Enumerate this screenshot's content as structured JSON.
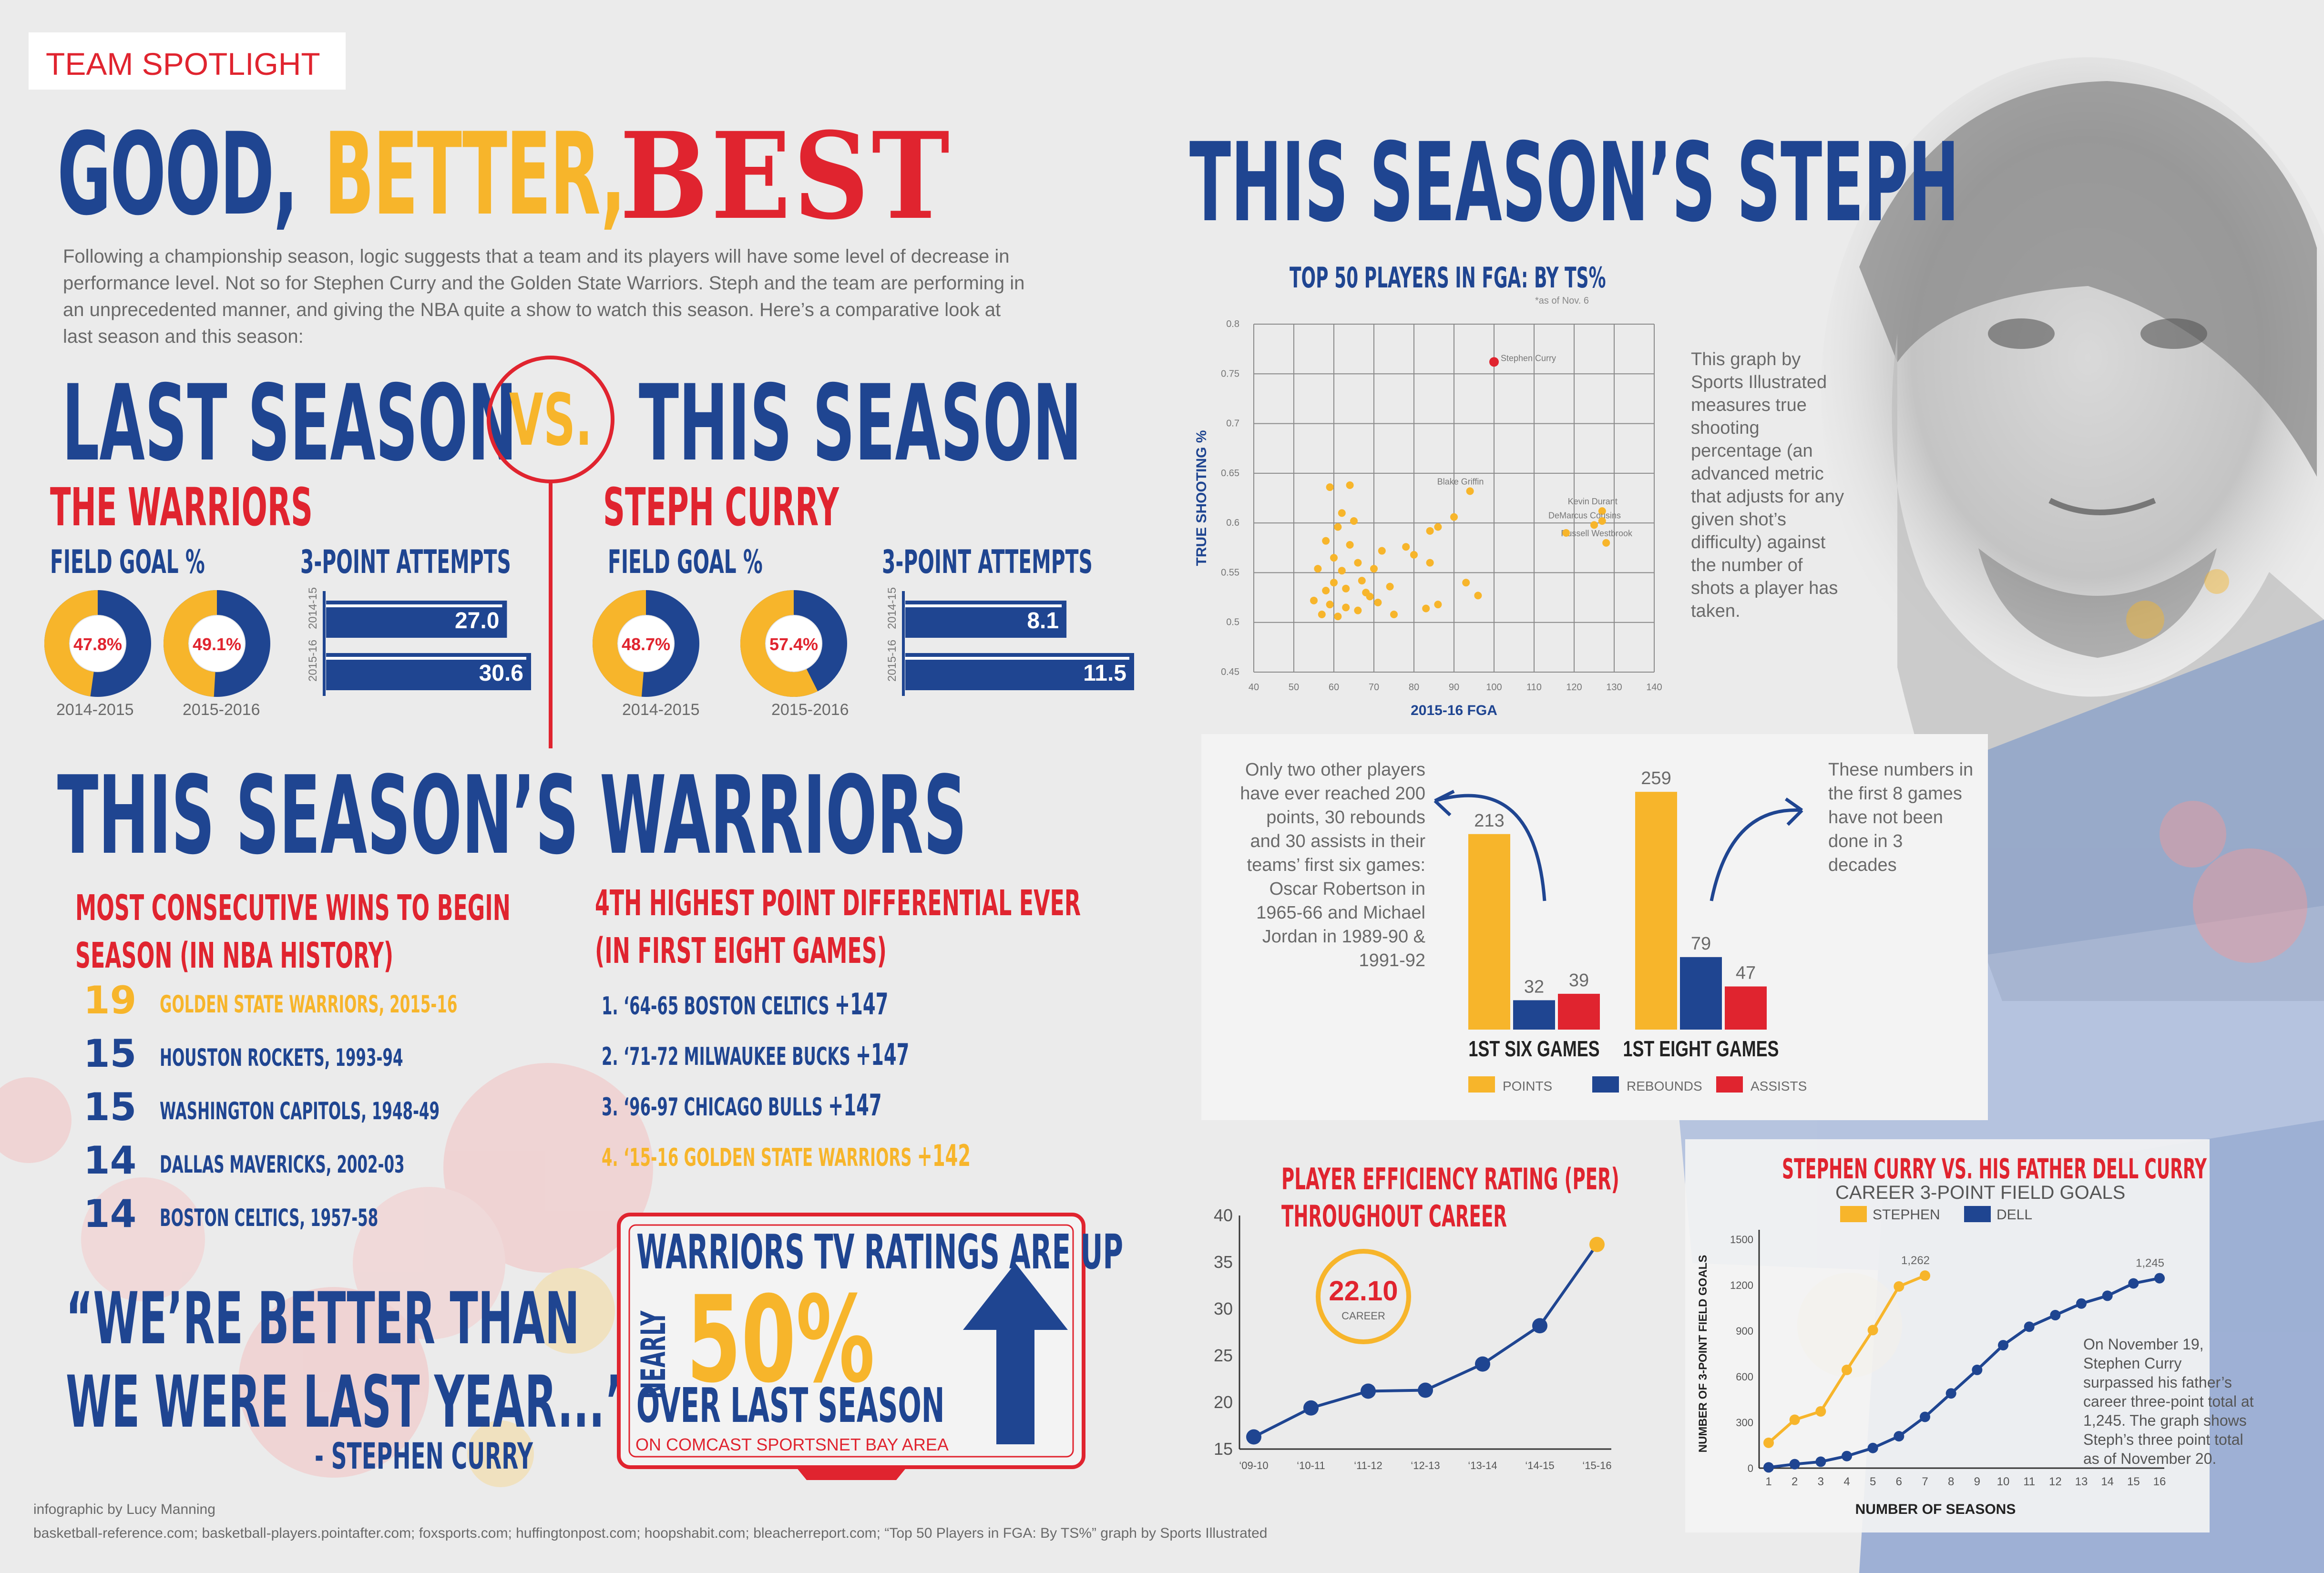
{
  "colors": {
    "blue": "#1f4591",
    "gold": "#f7b52b",
    "red": "#e0242f",
    "gray": "#707070"
  },
  "header": {
    "spotlight": "TEAM SPOTLIGHT",
    "good": "GOOD,",
    "better": "BETTER,",
    "best": "BEST"
  },
  "intro": [
    "Following a championship season, logic suggests that a team and its players will have some level of decrease in",
    "performance level. Not so for Stephen Curry and the Golden State Warriors. Steph and the team are performing in",
    "an unprecedented manner, and giving the NBA quite a show to watch this season. Here’s a comparative look at",
    "last season and this season:"
  ],
  "versus": {
    "last": "LAST SEASON",
    "vs": "VS.",
    "this": "THIS SEASON"
  },
  "warriors": {
    "heading": "THE WARRIORS",
    "fg_label": "FIELD GOAL %",
    "three_label": "3-POINT ATTEMPTS",
    "fg": [
      {
        "value": "47.8%",
        "pct": 47.8,
        "season": "2014-2015"
      },
      {
        "value": "49.1%",
        "pct": 49.1,
        "season": "2015-2016"
      }
    ],
    "three": [
      {
        "season": "2014-15",
        "value": "27.0",
        "num": 27.0
      },
      {
        "season": "2015-16",
        "value": "30.6",
        "num": 30.6
      }
    ]
  },
  "curry": {
    "heading": "STEPH CURRY",
    "fg_label": "FIELD GOAL %",
    "three_label": "3-POINT ATTEMPTS",
    "fg": [
      {
        "value": "48.7%",
        "pct": 48.7,
        "season": "2014-2015"
      },
      {
        "value": "57.4%",
        "pct": 57.4,
        "season": "2015-2016"
      }
    ],
    "three": [
      {
        "season": "2014-15",
        "value": "8.1",
        "num": 8.1
      },
      {
        "season": "2015-16",
        "value": "11.5",
        "num": 11.5
      }
    ]
  },
  "this_warriors": {
    "title": "THIS SEASON’S WARRIORS",
    "wins_title": [
      "MOST CONSECUTIVE WINS TO BEGIN",
      "SEASON (IN NBA HISTORY)"
    ],
    "wins": [
      {
        "num": "19",
        "team": "GOLDEN STATE WARRIORS, 2015-16",
        "highlight": true
      },
      {
        "num": "15",
        "team": "HOUSTON ROCKETS, 1993-94",
        "highlight": false
      },
      {
        "num": "15",
        "team": "WASHINGTON CAPITOLS, 1948-49",
        "highlight": false
      },
      {
        "num": "14",
        "team": "DALLAS MAVERICKS, 2002-03",
        "highlight": false
      },
      {
        "num": "14",
        "team": "BOSTON CELTICS, 1957-58",
        "highlight": false
      }
    ],
    "diff_title": [
      "4TH HIGHEST POINT DIFFERENTIAL EVER",
      "(IN FIRST EIGHT GAMES)"
    ],
    "diffs": [
      {
        "label": "1. ‘64-65 BOSTON CELTICS",
        "value": "+147",
        "highlight": false
      },
      {
        "label": "2. ‘71-72 MILWAUKEE BUCKS",
        "value": "+147",
        "highlight": false
      },
      {
        "label": "3. ‘96-97 CHICAGO BULLS",
        "value": "+147",
        "highlight": false
      },
      {
        "label": "4. ‘15-16 GOLDEN STATE WARRIORS",
        "value": "+142",
        "highlight": true
      }
    ]
  },
  "quote": {
    "line1": "“WE’RE BETTER THAN",
    "line2": "WE WERE LAST YEAR...”",
    "attribution": "- STEPHEN CURRY"
  },
  "tv": {
    "title": "WARRIORS TV RATINGS ARE UP",
    "nearly": "NEARLY",
    "pct": "50%",
    "over": "OVER LAST SEASON",
    "network": "ON COMCAST SPORTSNET BAY AREA"
  },
  "credits": {
    "author": "infographic by Lucy Manning",
    "sources": "basketball-reference.com; basketball-players.pointafter.com; foxsports.com; huffingtonpost.com; hoopshabit.com; bleacherreport.com; “Top 50 Players in FGA: By TS%” graph by Sports Illustrated"
  },
  "steph": {
    "title": "THIS SEASON’S STEPH"
  },
  "ts_note": "This graph by Sports Illustrated measures true shooting percentage (an advanced metric that adjusts for any given shot’s difficulty) against the number of shots a player has taken.",
  "bar_notes": {
    "left": "Only two other players have ever reached 200 points, 30 rebounds and 30 assists in their teams’ first six games: Oscar Robertson in 1965-66 and Michael Jordan in 1989-90 & 1991-92",
    "right": "These numbers in the first 8 games have not been done in 3 decades"
  },
  "per_note": {
    "value": "22.10",
    "label": "CAREER"
  },
  "dell_note": "On November 19, Stephen Curry surpassed his father’s career three-point total at 1,245. The graph shows Steph’s three point total as of November 20.",
  "chart_data": [
    {
      "type": "scatter",
      "title": "TOP 50 PLAYERS IN FGA: BY TS%",
      "subtitle": "*as of Nov. 6",
      "xlabel": "2015-16 FGA",
      "ylabel": "TRUE SHOOTING %",
      "xlim": [
        40,
        140
      ],
      "ylim": [
        0.45,
        0.8
      ],
      "xticks": [
        40,
        50,
        60,
        70,
        80,
        90,
        100,
        110,
        120,
        130,
        140
      ],
      "yticks": [
        0.45,
        0.5,
        0.55,
        0.6,
        0.65,
        0.7,
        0.75,
        0.8
      ],
      "grid": true,
      "points": [
        {
          "x": 100,
          "y": 0.762,
          "label": "Stephen Curry",
          "highlight": true
        },
        {
          "x": 94,
          "y": 0.632,
          "label": "Blake Griffin"
        },
        {
          "x": 127,
          "y": 0.612,
          "label": "Kevin Durant"
        },
        {
          "x": 125,
          "y": 0.598,
          "label": "DeMarcus Cousins"
        },
        {
          "x": 128,
          "y": 0.58,
          "label": "Russell Westbrook"
        },
        {
          "x": 59,
          "y": 0.636
        },
        {
          "x": 64,
          "y": 0.638
        },
        {
          "x": 62,
          "y": 0.61
        },
        {
          "x": 61,
          "y": 0.596
        },
        {
          "x": 65,
          "y": 0.602
        },
        {
          "x": 58,
          "y": 0.582
        },
        {
          "x": 64,
          "y": 0.578
        },
        {
          "x": 72,
          "y": 0.572
        },
        {
          "x": 78,
          "y": 0.576
        },
        {
          "x": 84,
          "y": 0.592
        },
        {
          "x": 86,
          "y": 0.596
        },
        {
          "x": 90,
          "y": 0.606
        },
        {
          "x": 80,
          "y": 0.568
        },
        {
          "x": 84,
          "y": 0.56
        },
        {
          "x": 60,
          "y": 0.565
        },
        {
          "x": 56,
          "y": 0.554
        },
        {
          "x": 62,
          "y": 0.552
        },
        {
          "x": 66,
          "y": 0.56
        },
        {
          "x": 70,
          "y": 0.554
        },
        {
          "x": 60,
          "y": 0.54
        },
        {
          "x": 67,
          "y": 0.542
        },
        {
          "x": 74,
          "y": 0.536
        },
        {
          "x": 58,
          "y": 0.532
        },
        {
          "x": 63,
          "y": 0.534
        },
        {
          "x": 68,
          "y": 0.53
        },
        {
          "x": 55,
          "y": 0.522
        },
        {
          "x": 59,
          "y": 0.518
        },
        {
          "x": 63,
          "y": 0.515
        },
        {
          "x": 71,
          "y": 0.52
        },
        {
          "x": 83,
          "y": 0.514
        },
        {
          "x": 57,
          "y": 0.508
        },
        {
          "x": 61,
          "y": 0.506
        },
        {
          "x": 66,
          "y": 0.512
        },
        {
          "x": 75,
          "y": 0.508
        },
        {
          "x": 93,
          "y": 0.54
        },
        {
          "x": 96,
          "y": 0.527
        },
        {
          "x": 118,
          "y": 0.59
        },
        {
          "x": 127,
          "y": 0.602
        },
        {
          "x": 69,
          "y": 0.526
        },
        {
          "x": 86,
          "y": 0.518
        }
      ]
    },
    {
      "type": "bar",
      "categories": [
        "1ST SIX GAMES",
        "1ST EIGHT GAMES"
      ],
      "series": [
        {
          "name": "POINTS",
          "values": [
            213,
            259
          ],
          "color": "#f7b52b"
        },
        {
          "name": "REBOUNDS",
          "values": [
            32,
            79
          ],
          "color": "#1f4591"
        },
        {
          "name": "ASSISTS",
          "values": [
            39,
            47
          ],
          "color": "#e0242f"
        }
      ],
      "ylim": [
        0,
        270
      ],
      "legend": "bottom"
    },
    {
      "type": "line",
      "title": "PLAYER EFFICIENCY RATING (PER) THROUGHOUT CAREER",
      "categories": [
        "‘09-10",
        "‘10-11",
        "‘11-12",
        "‘12-13",
        "‘13-14",
        "‘14-15",
        "‘15-16"
      ],
      "values": [
        16.3,
        19.4,
        21.2,
        21.3,
        24.1,
        28.2,
        36.9
      ],
      "ylim": [
        15,
        40
      ],
      "yticks": [
        15,
        20,
        25,
        30,
        35,
        40
      ]
    },
    {
      "type": "line",
      "title": "STEPHEN CURRY VS. HIS FATHER DELL CURRY",
      "subtitle": "CAREER 3-POINT FIELD GOALS",
      "xlabel": "NUMBER OF SEASONS",
      "ylabel": "NUMBER OF 3-POINT FIELD GOALS",
      "xlim": [
        1,
        16
      ],
      "ylim": [
        0,
        1500
      ],
      "yticks": [
        0,
        300,
        600,
        900,
        1200,
        1500
      ],
      "xticks": [
        1,
        2,
        3,
        4,
        5,
        6,
        7,
        8,
        9,
        10,
        11,
        12,
        13,
        14,
        15,
        16
      ],
      "series": [
        {
          "name": "STEPHEN",
          "color": "#f7b52b",
          "x": [
            1,
            2,
            3,
            4,
            5,
            6,
            7
          ],
          "values": [
            166,
            317,
            372,
            644,
            905,
            1191,
            1262
          ],
          "end_label": "1,262"
        },
        {
          "name": "DELL",
          "color": "#1f4591",
          "x": [
            1,
            2,
            3,
            4,
            5,
            6,
            7,
            8,
            9,
            10,
            11,
            12,
            13,
            14,
            15,
            16
          ],
          "values": [
            5,
            26,
            42,
            79,
            132,
            209,
            336,
            490,
            644,
            806,
            927,
            1003,
            1079,
            1130,
            1211,
            1245
          ],
          "end_label": "1,245"
        }
      ]
    }
  ]
}
